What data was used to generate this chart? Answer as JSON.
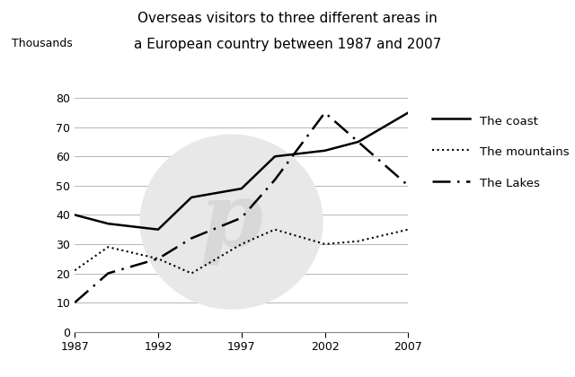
{
  "title_line1": "Overseas visitors to three different areas in",
  "title_line2": "a European country between 1987 and 2007",
  "ylabel": "Thousands",
  "years": [
    1987,
    1989,
    1992,
    1994,
    1997,
    1999,
    2002,
    2004,
    2007
  ],
  "coast": [
    40,
    37,
    35,
    46,
    49,
    60,
    62,
    65,
    75
  ],
  "mountains": [
    21,
    29,
    25,
    20,
    30,
    35,
    30,
    31,
    35
  ],
  "lakes": [
    10,
    20,
    25,
    32,
    39,
    52,
    75,
    65,
    50
  ],
  "ylim": [
    0,
    80
  ],
  "xlim": [
    1987,
    2007
  ],
  "xticks": [
    1987,
    1992,
    1997,
    2002,
    2007
  ],
  "yticks": [
    0,
    10,
    20,
    30,
    40,
    50,
    60,
    70,
    80
  ],
  "legend_labels": [
    "The coast",
    "The mountains",
    "The Lakes"
  ],
  "bg_color": "#ffffff",
  "line_color": "#000000",
  "watermark_color": "#e8e8e8",
  "title_fontsize": 11,
  "tick_fontsize": 9,
  "legend_fontsize": 9.5
}
